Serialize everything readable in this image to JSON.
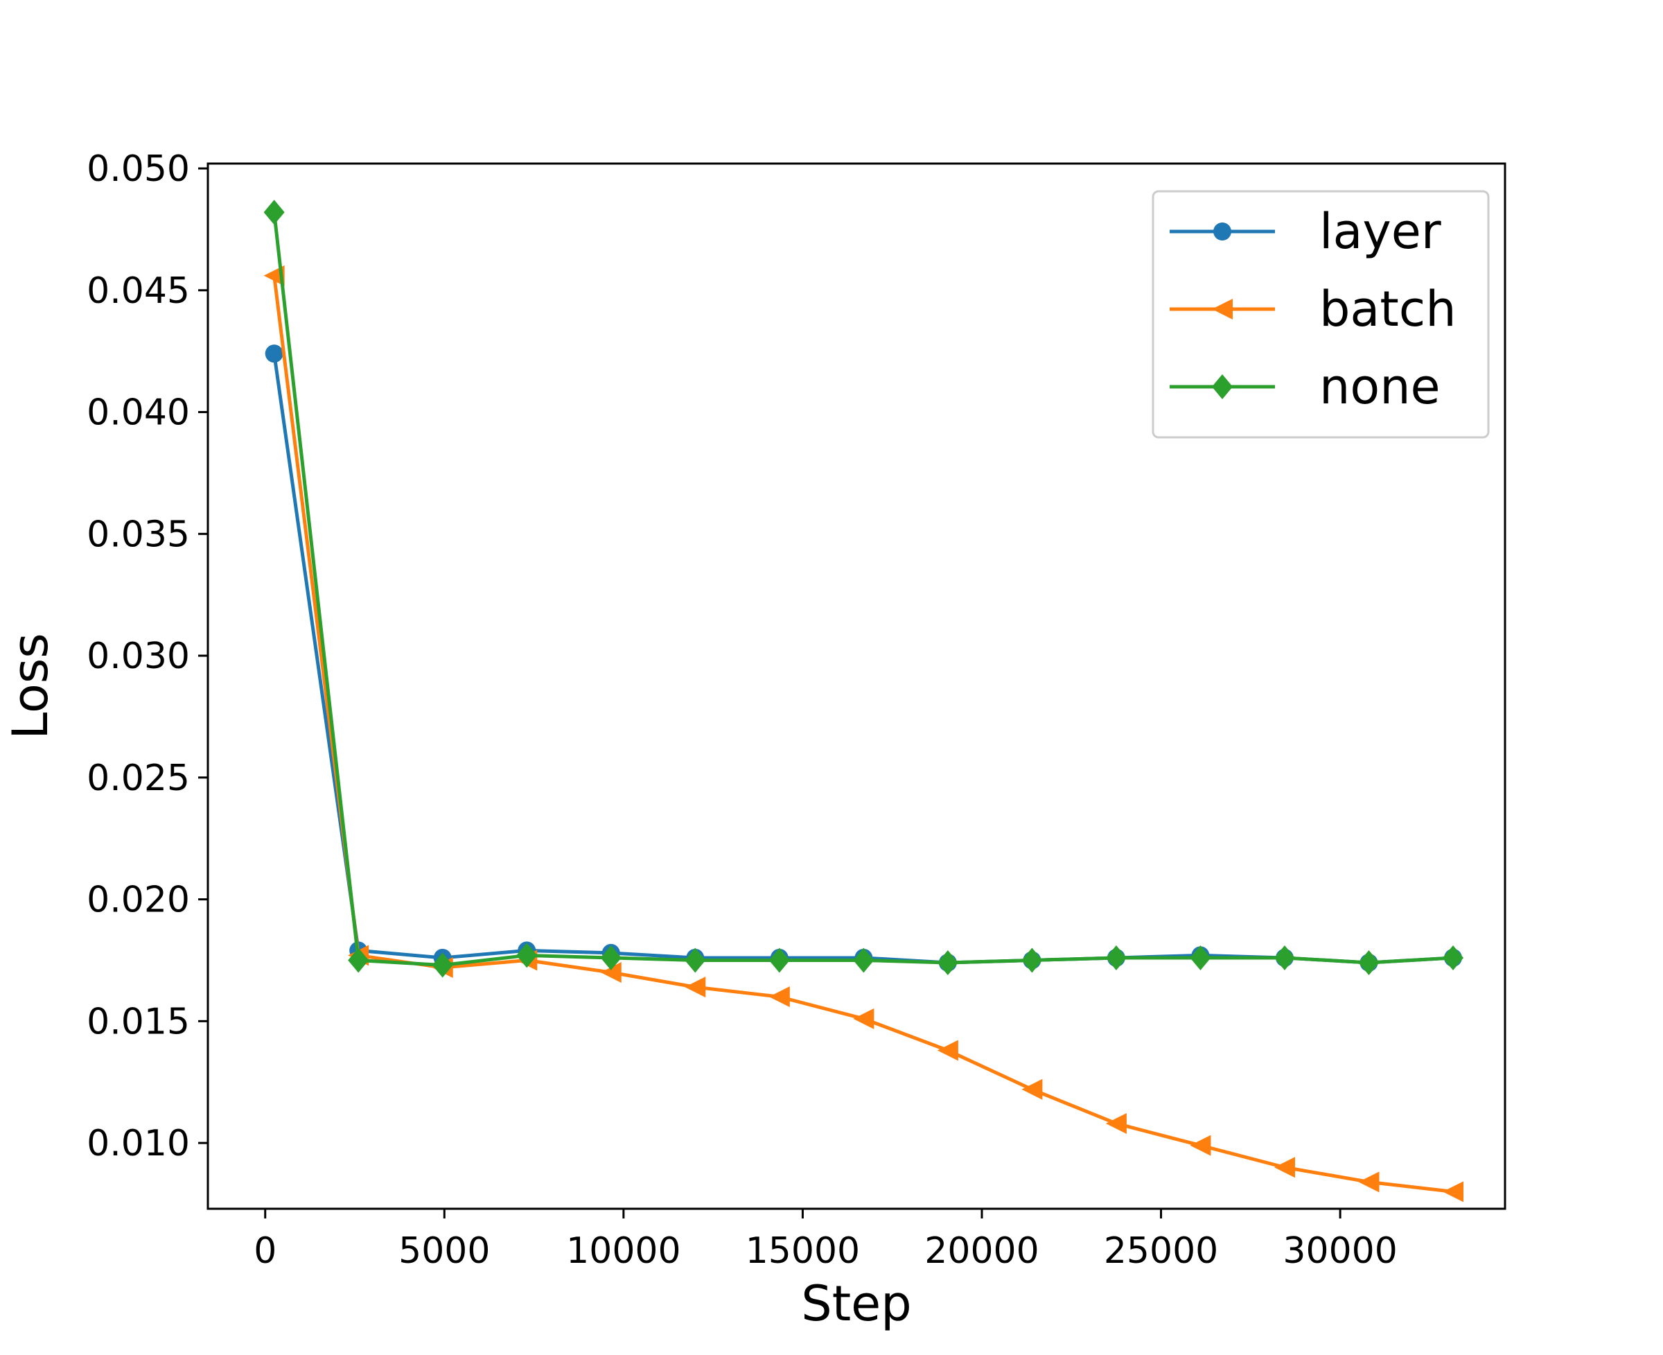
{
  "chart_data": {
    "type": "line",
    "title": "",
    "xlabel": "Step",
    "ylabel": "Loss",
    "xlim": [
      -1600,
      34600
    ],
    "ylim": [
      0.0073,
      0.0502
    ],
    "xticks": [
      0,
      5000,
      10000,
      15000,
      20000,
      25000,
      30000
    ],
    "xtick_labels": [
      "0",
      "5000",
      "10000",
      "15000",
      "20000",
      "25000",
      "30000"
    ],
    "yticks": [
      0.01,
      0.015,
      0.02,
      0.025,
      0.03,
      0.035,
      0.04,
      0.045,
      0.05
    ],
    "ytick_labels": [
      "0.010",
      "0.015",
      "0.020",
      "0.025",
      "0.030",
      "0.035",
      "0.040",
      "0.045",
      "0.050"
    ],
    "grid": false,
    "legend_position": "top-right",
    "x": [
      250,
      2600,
      4950,
      7300,
      9650,
      12000,
      14350,
      16700,
      19050,
      21400,
      23750,
      26100,
      28450,
      30800,
      33150
    ],
    "series": [
      {
        "name": "layer",
        "color": "#1f77b4",
        "marker": "circle",
        "values": [
          0.0424,
          0.0179,
          0.0176,
          0.0179,
          0.0178,
          0.0176,
          0.0176,
          0.0176,
          0.0174,
          0.0175,
          0.0176,
          0.0177,
          0.0176,
          0.0174,
          0.0176
        ]
      },
      {
        "name": "batch",
        "color": "#ff7f0e",
        "marker": "triangle-left",
        "values": [
          0.0456,
          0.0177,
          0.0172,
          0.0175,
          0.017,
          0.0164,
          0.016,
          0.0151,
          0.0138,
          0.0122,
          0.0108,
          0.0099,
          0.009,
          0.0084,
          0.008
        ]
      },
      {
        "name": "none",
        "color": "#2ca02c",
        "marker": "diamond",
        "values": [
          0.0482,
          0.0175,
          0.0173,
          0.0177,
          0.0176,
          0.0175,
          0.0175,
          0.0175,
          0.0174,
          0.0175,
          0.0176,
          0.0176,
          0.0176,
          0.0174,
          0.0176
        ]
      }
    ]
  }
}
